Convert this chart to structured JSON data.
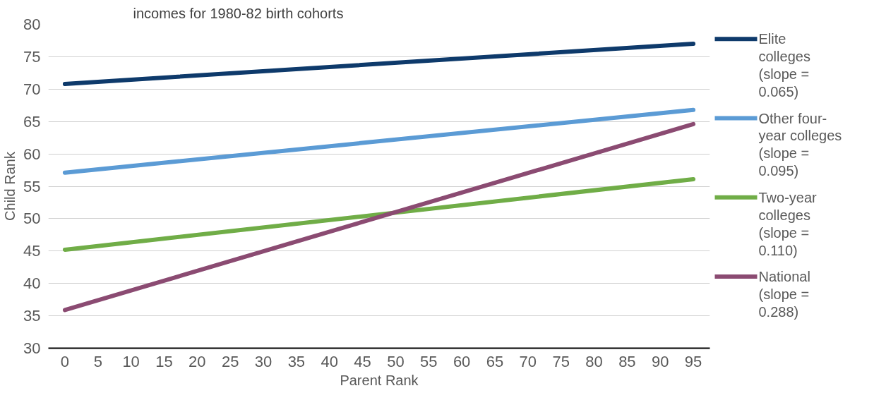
{
  "chart_data": {
    "type": "line",
    "title": "incomes for 1980-82 birth cohorts",
    "xlabel": "Parent Rank",
    "ylabel": "Child Rank",
    "xlim": [
      -2.5,
      97.5
    ],
    "xticks": [
      0,
      5,
      10,
      15,
      20,
      25,
      30,
      35,
      40,
      45,
      50,
      55,
      60,
      65,
      70,
      75,
      80,
      85,
      90,
      95
    ],
    "x": [
      0,
      95
    ],
    "ylim": [
      30,
      80
    ],
    "yticks": [
      30,
      35,
      40,
      45,
      50,
      55,
      60,
      65,
      70,
      75,
      80
    ],
    "grid": "y",
    "legend": "right",
    "marker": "none",
    "line_style": "solid",
    "series": [
      {
        "name": "Elite colleges (slope = 0.065)",
        "color": "#0e3a6b",
        "values": [
          70.8,
          77.0
        ]
      },
      {
        "name": "Other four-year colleges (slope = 0.095)",
        "color": "#5b9bd5",
        "values": [
          57.1,
          66.8
        ]
      },
      {
        "name": "Two-year colleges (slope = 0.110)",
        "color": "#70ad47",
        "values": [
          45.2,
          56.1
        ]
      },
      {
        "name": "National (slope = 0.288)",
        "color": "#8b4b72",
        "values": [
          35.9,
          64.6
        ]
      }
    ]
  }
}
